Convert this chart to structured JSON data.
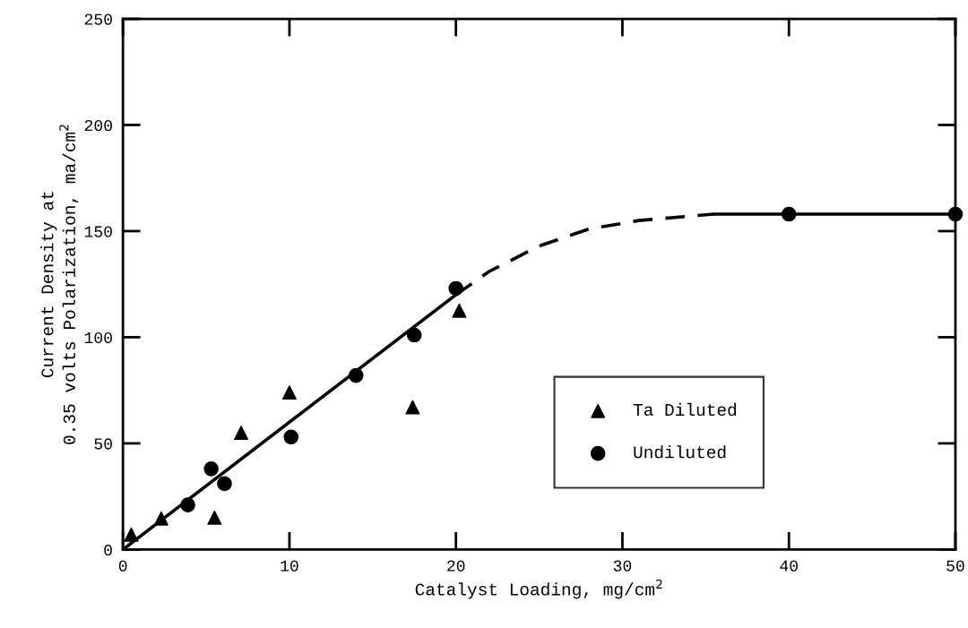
{
  "chart_data": {
    "type": "scatter",
    "xlabel": "Catalyst Loading, mg/cm$^{2}$",
    "ylabel": "Current Density at\n0.35 volts Polarization, ma/cm$^{2}$",
    "xlim": [
      0,
      50
    ],
    "ylim": [
      0,
      250
    ],
    "xticks": [
      0,
      10,
      20,
      30,
      40,
      50
    ],
    "yticks": [
      0,
      50,
      100,
      150,
      200,
      250
    ],
    "grid": false,
    "legend": "lower right",
    "series": [
      {
        "name": "Ta Diluted",
        "type": "scatter",
        "marker": "triangle",
        "color": "#000000",
        "x": [
          0.5,
          2.3,
          5.5,
          7.1,
          10.0,
          17.4,
          20.2
        ],
        "values": [
          7,
          14.6,
          15,
          55,
          74,
          67,
          112.5
        ]
      },
      {
        "name": "Undiluted",
        "type": "scatter",
        "marker": "circle",
        "color": "#000000",
        "x": [
          3.9,
          5.3,
          6.1,
          10.1,
          14.0,
          17.5,
          20.0,
          40,
          50
        ],
        "values": [
          21,
          38,
          31,
          53,
          82,
          101,
          123,
          158,
          158
        ]
      },
      {
        "type": "line",
        "line_style": "solid",
        "color": "#000000",
        "x": [
          0,
          20
        ],
        "values": [
          0,
          120
        ]
      },
      {
        "type": "line",
        "line_style": "dashed",
        "color": "#000000",
        "x": [
          20,
          22,
          25,
          28,
          31,
          34,
          35.5
        ],
        "values": [
          120,
          131,
          143,
          151,
          155,
          157,
          158
        ]
      },
      {
        "type": "line",
        "line_style": "solid",
        "color": "#000000",
        "x": [
          35.5,
          50
        ],
        "values": [
          158,
          158
        ]
      }
    ]
  }
}
